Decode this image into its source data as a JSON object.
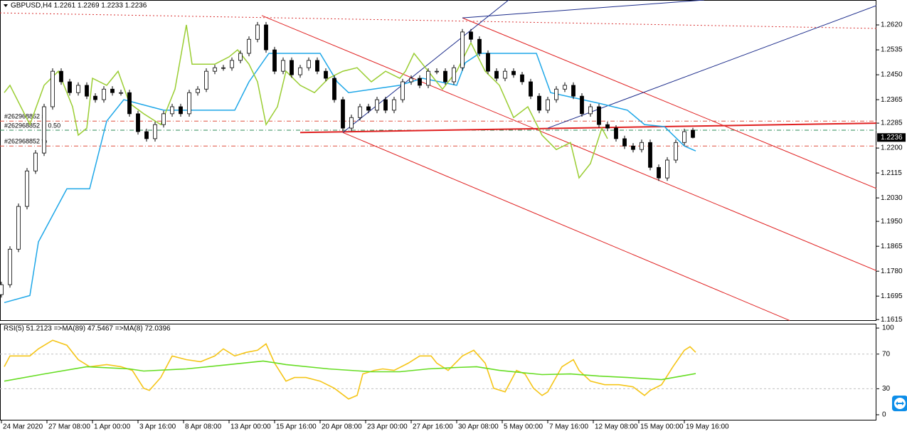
{
  "chart_data": [
    {
      "type": "candlestick",
      "title": "GBPUSD,H4  1.2261 1.2269 1.2233 1.2236",
      "x": [
        0,
        3,
        6,
        9,
        12,
        15,
        18,
        21,
        24,
        27,
        30,
        33,
        36,
        39,
        42,
        45,
        48,
        51,
        54,
        57,
        60,
        63,
        66,
        69,
        72,
        75,
        78,
        81,
        84,
        87,
        90,
        93,
        96,
        99,
        102,
        105,
        108,
        111,
        114,
        117,
        120,
        123,
        126,
        129,
        132,
        135,
        138,
        141,
        144,
        147,
        150,
        153,
        156,
        159,
        162,
        165,
        168,
        171,
        174,
        177,
        180,
        183,
        186,
        189,
        192,
        195,
        198,
        201,
        204,
        207,
        210,
        213,
        216,
        219,
        222,
        225,
        228,
        231,
        234,
        237,
        240,
        243
      ],
      "open": [
        1.17,
        1.1734,
        1.1855,
        1.2001,
        1.2122,
        1.2183,
        1.2341,
        1.2462,
        1.2426,
        1.2389,
        1.2414,
        1.2377,
        1.2365,
        1.2401,
        1.2389,
        1.2389,
        1.2317,
        1.2256,
        1.2232,
        1.228,
        1.2317,
        1.2341,
        1.2317,
        1.2389,
        1.2401,
        1.2462,
        1.2474,
        1.2474,
        1.2499,
        1.2523,
        1.2571,
        1.262,
        1.2535,
        1.2462,
        1.2499,
        1.245,
        1.2474,
        1.2499,
        1.2462,
        1.2438,
        1.2365,
        1.2268,
        1.2304,
        1.2341,
        1.2329,
        1.2365,
        1.2329,
        1.2365,
        1.2426,
        1.2438,
        1.2414,
        1.2462,
        1.2462,
        1.2426,
        1.2474,
        1.2596,
        1.2571,
        1.2523,
        1.2462,
        1.2438,
        1.2462,
        1.245,
        1.2426,
        1.2377,
        1.2329,
        1.2365,
        1.2401,
        1.2414,
        1.2377,
        1.2317,
        1.2341,
        1.228,
        1.2268,
        1.2232,
        1.2207,
        1.2195,
        1.2219,
        1.2134,
        1.2098,
        1.2159,
        1.2219,
        1.2261
      ],
      "high": [
        1.1744,
        1.1865,
        1.2011,
        1.2132,
        1.2193,
        1.2351,
        1.2472,
        1.2472,
        1.2436,
        1.2424,
        1.2424,
        1.2387,
        1.2411,
        1.2411,
        1.2399,
        1.2399,
        1.2327,
        1.2266,
        1.229,
        1.2327,
        1.2351,
        1.2351,
        1.2399,
        1.2411,
        1.2472,
        1.2484,
        1.2484,
        1.2509,
        1.2533,
        1.2581,
        1.263,
        1.263,
        1.2545,
        1.2509,
        1.2509,
        1.2484,
        1.2509,
        1.2509,
        1.2472,
        1.2448,
        1.2375,
        1.2314,
        1.2351,
        1.2351,
        1.2375,
        1.2375,
        1.2375,
        1.2436,
        1.2448,
        1.2448,
        1.2472,
        1.2472,
        1.2472,
        1.2484,
        1.2606,
        1.2606,
        1.2581,
        1.2533,
        1.2472,
        1.2472,
        1.2472,
        1.246,
        1.2436,
        1.2387,
        1.2375,
        1.2411,
        1.2424,
        1.2424,
        1.2387,
        1.2351,
        1.2351,
        1.229,
        1.2278,
        1.2242,
        1.2217,
        1.2229,
        1.2229,
        1.2144,
        1.2169,
        1.2229,
        1.2266,
        1.2269
      ],
      "low": [
        1.169,
        1.1724,
        1.1845,
        1.1991,
        1.2112,
        1.2173,
        1.2331,
        1.2416,
        1.2379,
        1.2379,
        1.2367,
        1.2355,
        1.2355,
        1.2379,
        1.2379,
        1.2307,
        1.2246,
        1.2222,
        1.2222,
        1.227,
        1.2307,
        1.2307,
        1.2307,
        1.2379,
        1.2391,
        1.2452,
        1.2464,
        1.2464,
        1.2489,
        1.2513,
        1.2561,
        1.2525,
        1.2452,
        1.2452,
        1.244,
        1.244,
        1.2464,
        1.2452,
        1.2428,
        1.2355,
        1.2258,
        1.2258,
        1.2294,
        1.2319,
        1.2319,
        1.2319,
        1.2319,
        1.2355,
        1.2416,
        1.2404,
        1.2404,
        1.2452,
        1.2416,
        1.2416,
        1.2464,
        1.2561,
        1.2513,
        1.2452,
        1.2428,
        1.2428,
        1.244,
        1.2416,
        1.2367,
        1.2319,
        1.2319,
        1.2355,
        1.2391,
        1.2367,
        1.2307,
        1.2307,
        1.227,
        1.2258,
        1.2222,
        1.2197,
        1.2185,
        1.2185,
        1.2124,
        1.2088,
        1.2088,
        1.2149,
        1.2209,
        1.2233
      ],
      "close": [
        1.1734,
        1.1855,
        1.2001,
        1.2122,
        1.2183,
        1.2341,
        1.2462,
        1.2426,
        1.2389,
        1.2414,
        1.2377,
        1.2365,
        1.2401,
        1.2389,
        1.2389,
        1.2317,
        1.2256,
        1.2232,
        1.228,
        1.2317,
        1.2341,
        1.2317,
        1.2389,
        1.2401,
        1.2462,
        1.2474,
        1.2474,
        1.2499,
        1.2523,
        1.2571,
        1.262,
        1.2535,
        1.2462,
        1.2499,
        1.245,
        1.2474,
        1.2499,
        1.2462,
        1.2438,
        1.2365,
        1.2268,
        1.2304,
        1.2341,
        1.2329,
        1.2365,
        1.2329,
        1.2365,
        1.2426,
        1.2438,
        1.2414,
        1.2462,
        1.2462,
        1.2426,
        1.2474,
        1.2596,
        1.2571,
        1.2523,
        1.2462,
        1.2438,
        1.2462,
        1.245,
        1.2426,
        1.2377,
        1.2329,
        1.2365,
        1.2401,
        1.2414,
        1.2377,
        1.2317,
        1.2341,
        1.228,
        1.2268,
        1.2232,
        1.2207,
        1.2195,
        1.2219,
        1.2134,
        1.2098,
        1.2159,
        1.2219,
        1.2256,
        1.2236
      ],
      "candle_color": "#000000",
      "up_fill": "#ffffff",
      "down_fill": "#000000",
      "xlim": [
        -0.5,
        307.5
      ],
      "ylim": [
        1.1613,
        1.2705
      ],
      "xticks": [
        {
          "value": 0,
          "label": "24 Mar 2020"
        },
        {
          "value": 16,
          "label": "27 Mar 08:00"
        },
        {
          "value": 32,
          "label": "1 Apr 00:00"
        },
        {
          "value": 48,
          "label": "3 Apr 16:00"
        },
        {
          "value": 64,
          "label": "8 Apr 08:00"
        },
        {
          "value": 80,
          "label": "13 Apr 00:00"
        },
        {
          "value": 96,
          "label": "15 Apr 16:00"
        },
        {
          "value": 112,
          "label": "20 Apr 08:00"
        },
        {
          "value": 128,
          "label": "23 Apr 00:00"
        },
        {
          "value": 144,
          "label": "27 Apr 16:00"
        },
        {
          "value": 160,
          "label": "30 Apr 08:00"
        },
        {
          "value": 176,
          "label": "5 May 00:00"
        },
        {
          "value": 192,
          "label": "7 May 16:00"
        },
        {
          "value": 208,
          "label": "12 May 08:00"
        },
        {
          "value": 224,
          "label": "15 May 00:00"
        },
        {
          "value": 240,
          "label": "19 May 16:00"
        }
      ],
      "yticks": [
        {
          "value": 1.262,
          "label": "1.2620"
        },
        {
          "value": 1.2535,
          "label": "1.2535"
        },
        {
          "value": 1.245,
          "label": "1.2450"
        },
        {
          "value": 1.2365,
          "label": "1.2365"
        },
        {
          "value": 1.2285,
          "label": "1.2285"
        },
        {
          "value": 1.22,
          "label": "1.2200"
        },
        {
          "value": 1.2115,
          "label": "1.2115"
        },
        {
          "value": 1.203,
          "label": "1.2030"
        },
        {
          "value": 1.195,
          "label": "1.1950"
        },
        {
          "value": 1.1865,
          "label": "1.1865"
        },
        {
          "value": 1.178,
          "label": "1.1780"
        },
        {
          "value": 1.1695,
          "label": "1.1695"
        },
        {
          "value": 1.1615,
          "label": "1.1615"
        }
      ],
      "last_price": {
        "value": 1.2236,
        "label": "1.2236"
      },
      "lines": [
        {
          "color": "#1ea7e8",
          "x": [
            1,
            10,
            13,
            23,
            31,
            37,
            43,
            57,
            68,
            82,
            87,
            94,
            112,
            118,
            122,
            140,
            148,
            160,
            163,
            168,
            188,
            193,
            210,
            220,
            226,
            233,
            240,
            244
          ],
          "values": [
            1.1673,
            1.1697,
            1.188,
            1.2061,
            1.2061,
            1.2292,
            1.2365,
            1.2329,
            1.2329,
            1.2329,
            1.2426,
            1.2523,
            1.2523,
            1.2426,
            1.2389,
            1.2414,
            1.2438,
            1.2414,
            1.2491,
            1.2523,
            1.2523,
            1.2389,
            1.2353,
            1.2329,
            1.228,
            1.2273,
            1.2207,
            1.219
          ]
        },
        {
          "color": "#9acd32",
          "x": [
            1,
            3,
            10,
            15,
            20,
            25,
            27,
            30,
            32,
            37,
            41,
            45,
            50,
            56,
            61,
            65,
            67,
            75,
            80,
            83,
            87,
            90,
            93,
            97,
            100,
            105,
            110,
            115,
            120,
            125,
            130,
            135,
            140,
            142,
            145,
            150,
            155,
            160,
            165,
            170,
            175,
            180,
            185,
            190,
            195,
            200,
            203,
            207,
            211,
            213
          ],
          "values": [
            1.2389,
            1.2414,
            1.228,
            1.2414,
            1.2462,
            1.2341,
            1.2244,
            1.2268,
            1.2438,
            1.2414,
            1.2462,
            1.2353,
            1.2317,
            1.228,
            1.2401,
            1.262,
            1.2486,
            1.2486,
            1.2511,
            1.2535,
            1.2486,
            1.2426,
            1.228,
            1.2341,
            1.2462,
            1.2414,
            1.2389,
            1.2438,
            1.2462,
            1.2474,
            1.2426,
            1.2462,
            1.2438,
            1.2462,
            1.2523,
            1.2462,
            1.2401,
            1.2462,
            1.2559,
            1.2462,
            1.2414,
            1.2304,
            1.2341,
            1.2244,
            1.2195,
            1.2219,
            1.2098,
            1.2147,
            1.2268,
            1.2232
          ]
        }
      ],
      "trendlines": [
        {
          "color": "#d83030",
          "dash": "2,3",
          "width": 1,
          "points": [
            [
              -0.5,
              1.2661
            ],
            [
              307.5,
              1.2608
            ]
          ]
        },
        {
          "color": "#e02020",
          "dash": "none",
          "width": 1,
          "points": [
            [
              91.5,
              1.2652
            ],
            [
              307.5,
              1.1782
            ]
          ]
        },
        {
          "color": "#e02020",
          "dash": "none",
          "width": 1,
          "points": [
            [
              162,
              1.2644
            ],
            [
              307.5,
              1.2062
            ]
          ]
        },
        {
          "color": "#e02020",
          "dash": "none",
          "width": 1,
          "points": [
            [
              120,
              1.2253
            ],
            [
              277,
              1.1612
            ]
          ]
        },
        {
          "color": "#e02020",
          "dash": "none",
          "width": 2,
          "points": [
            [
              105,
              1.2253
            ],
            [
              307.5,
              1.2285
            ]
          ]
        },
        {
          "color": "#1a2a8a",
          "dash": "none",
          "width": 1,
          "points": [
            [
              120,
              1.2253
            ],
            [
              178.25,
              1.2705
            ]
          ]
        },
        {
          "color": "#1a2a8a",
          "dash": "none",
          "width": 1,
          "points": [
            [
              162,
              1.2644
            ],
            [
              247,
              1.2705
            ]
          ]
        },
        {
          "color": "#1a2a8a",
          "dash": "none",
          "width": 1,
          "points": [
            [
              192,
              1.2268
            ],
            [
              307.5,
              1.2686
            ]
          ]
        }
      ],
      "levels": [
        {
          "label": "#262968852 sl",
          "value": 1.2292,
          "color": "#e05040"
        },
        {
          "label": "#262968852 sl 0.50",
          "value": 1.2261,
          "color": "#2e8b57"
        },
        {
          "label": "#262968852 tp",
          "value": 1.2207,
          "color": "#e05040"
        }
      ]
    },
    {
      "type": "line",
      "title": "RSI(5) 51.2123  =>MA(89) 47.5467  =>MA(8) 72.0396",
      "ylim": [
        -6.6,
        105
      ],
      "yticks": [
        100,
        70,
        30,
        0
      ],
      "levels": [
        70,
        30
      ],
      "series": [
        {
          "color": "#f5c518",
          "x": [
            1,
            3,
            10,
            13,
            18,
            23,
            27,
            31,
            37,
            42,
            46,
            50,
            52,
            56,
            60,
            65,
            70,
            75,
            78,
            82,
            86,
            90,
            93,
            96,
            100,
            103,
            107,
            112,
            117,
            122,
            125,
            127,
            131,
            134,
            138,
            143,
            147,
            151,
            153,
            157,
            162,
            166,
            170,
            173,
            177,
            181,
            184,
            187,
            190,
            192,
            197,
            201,
            203,
            207,
            212,
            217,
            222,
            226,
            228,
            232,
            236,
            240,
            242,
            244
          ],
          "values": [
            55.4,
            67.8,
            67.8,
            76,
            86,
            80.2,
            63.6,
            55.4,
            57.9,
            55.4,
            51.2,
            30.6,
            28.1,
            43,
            67.8,
            63.6,
            61.2,
            67.8,
            76,
            67.8,
            71.9,
            74.4,
            81.8,
            59.5,
            38.8,
            43,
            43,
            38.8,
            30.6,
            18.2,
            22.3,
            47.1,
            51.2,
            52.9,
            51.2,
            59.5,
            67.8,
            67.8,
            59.5,
            51.2,
            67.8,
            74.4,
            59.5,
            30.6,
            26.4,
            51.2,
            47.1,
            30.6,
            22.3,
            26.4,
            55.4,
            63.6,
            51.2,
            38.8,
            34.7,
            34.7,
            32.2,
            22.3,
            28.1,
            34.7,
            55.4,
            74.4,
            78.5,
            72
          ]
        },
        {
          "color": "#66dd22",
          "x": [
            1,
            15,
            30,
            45,
            50,
            65,
            80,
            92,
            100,
            115,
            130,
            140,
            150,
            160,
            167,
            175,
            190,
            200,
            210,
            220,
            232,
            244
          ],
          "values": [
            38.8,
            47.1,
            55.4,
            52.9,
            50.4,
            52.9,
            57.9,
            62,
            57.9,
            52.9,
            49.6,
            49.6,
            52.9,
            54.5,
            55.4,
            51.2,
            46.3,
            47.1,
            44.6,
            43,
            40.5,
            47.5
          ]
        }
      ]
    }
  ]
}
